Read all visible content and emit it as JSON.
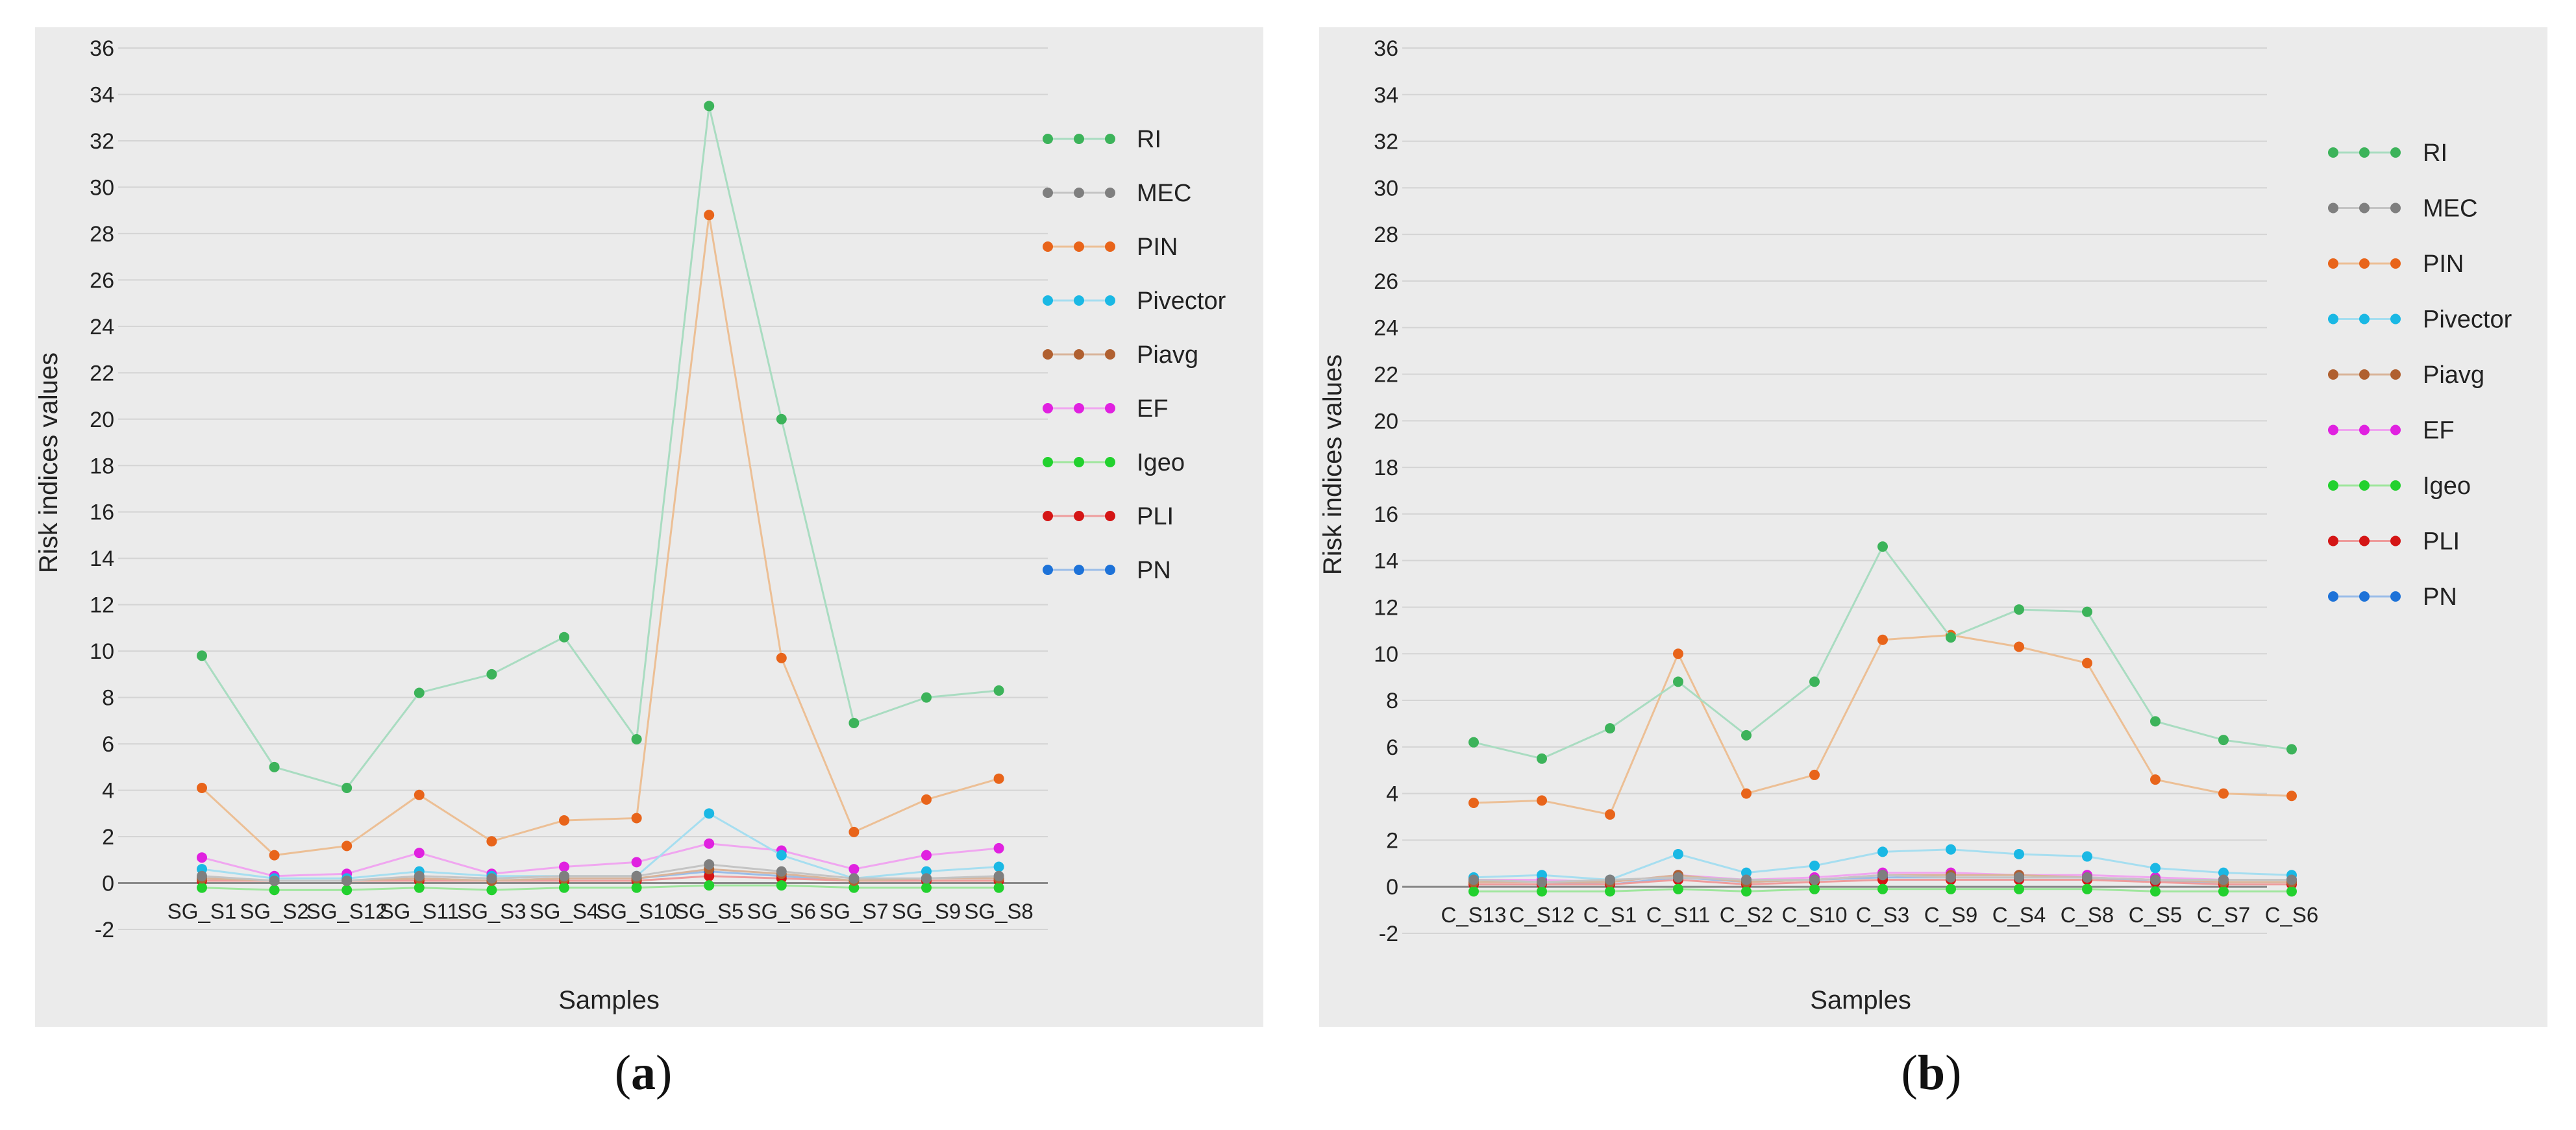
{
  "charts": [
    {
      "panel_label": "a",
      "chart_data": {
        "type": "line",
        "xlabel": "Samples",
        "ylabel": "Risk indices values",
        "ylim": [
          -2,
          36
        ],
        "yticks": [
          -2,
          0,
          2,
          4,
          6,
          8,
          10,
          12,
          14,
          16,
          18,
          20,
          22,
          24,
          26,
          28,
          30,
          32,
          34,
          36
        ],
        "grid": true,
        "legend_position": "right",
        "categories": [
          "SG_S1",
          "SG_S2",
          "SG_S12",
          "SG_S11",
          "SG_S3",
          "SG_S4",
          "SG_S10",
          "SG_S5",
          "SG_S6",
          "SG_S7",
          "SG_S9",
          "SG_S8"
        ],
        "series": [
          {
            "name": "RI",
            "color": "#3cb35a",
            "line_color": "#a9dcc1",
            "values": [
              9.8,
              5.0,
              4.1,
              8.2,
              9.0,
              10.6,
              6.2,
              33.5,
              20.0,
              6.9,
              8.0,
              8.3
            ]
          },
          {
            "name": "MEC",
            "color": "#7f7f7f",
            "line_color": "#c4c4c4",
            "values": [
              0.3,
              0.1,
              0.1,
              0.3,
              0.2,
              0.3,
              0.3,
              0.8,
              0.5,
              0.2,
              0.2,
              0.3
            ]
          },
          {
            "name": "PIN",
            "color": "#e8641a",
            "line_color": "#ecbf95",
            "values": [
              4.1,
              1.2,
              1.6,
              3.8,
              1.8,
              2.7,
              2.8,
              28.8,
              9.7,
              2.2,
              3.6,
              4.5
            ]
          },
          {
            "name": "Pivector",
            "color": "#1ab8e4",
            "line_color": "#a6def0",
            "values": [
              0.6,
              0.2,
              0.2,
              0.5,
              0.3,
              0.3,
              0.3,
              3.0,
              1.2,
              0.2,
              0.5,
              0.7
            ]
          },
          {
            "name": "Piavg",
            "color": "#b06030",
            "line_color": "#d9b49a",
            "values": [
              0.2,
              0.1,
              0.1,
              0.2,
              0.1,
              0.2,
              0.2,
              0.6,
              0.4,
              0.1,
              0.2,
              0.2
            ]
          },
          {
            "name": "EF",
            "color": "#e021e0",
            "line_color": "#f0a6f0",
            "values": [
              1.1,
              0.3,
              0.4,
              1.3,
              0.4,
              0.7,
              0.9,
              1.7,
              1.4,
              0.6,
              1.2,
              1.5
            ]
          },
          {
            "name": "Igeo",
            "color": "#22d12e",
            "line_color": "#9fe69d",
            "values": [
              -0.2,
              -0.3,
              -0.3,
              -0.2,
              -0.3,
              -0.2,
              -0.2,
              -0.1,
              -0.1,
              -0.2,
              -0.2,
              -0.2
            ]
          },
          {
            "name": "PLI",
            "color": "#d41515",
            "line_color": "#ee9c9c",
            "values": [
              0.1,
              0.1,
              0.1,
              0.1,
              0.1,
              0.1,
              0.1,
              0.3,
              0.2,
              0.1,
              0.1,
              0.1
            ]
          },
          {
            "name": "PN",
            "color": "#1d72d8",
            "line_color": "#9bbde8",
            "values": [
              0.2,
              0.1,
              0.1,
              0.2,
              0.1,
              0.2,
              0.2,
              0.5,
              0.3,
              0.1,
              0.2,
              0.2
            ]
          }
        ]
      }
    },
    {
      "panel_label": "b",
      "chart_data": {
        "type": "line",
        "xlabel": "Samples",
        "ylabel": "Risk indices values",
        "ylim": [
          -2,
          36
        ],
        "yticks": [
          -2,
          0,
          2,
          4,
          6,
          8,
          10,
          12,
          14,
          16,
          18,
          20,
          22,
          24,
          26,
          28,
          30,
          32,
          34,
          36
        ],
        "grid": true,
        "legend_position": "right",
        "categories": [
          "C_S13",
          "C_S12",
          "C_S1",
          "C_S11",
          "C_S2",
          "C_S10",
          "C_S3",
          "C_S9",
          "C_S4",
          "C_S8",
          "C_S5",
          "C_S7",
          "C_S6"
        ],
        "series": [
          {
            "name": "RI",
            "color": "#3cb35a",
            "line_color": "#a9dcc1",
            "values": [
              6.2,
              5.5,
              6.8,
              8.8,
              6.5,
              8.8,
              14.6,
              10.7,
              11.9,
              11.8,
              7.1,
              6.3,
              5.9
            ]
          },
          {
            "name": "MEC",
            "color": "#7f7f7f",
            "line_color": "#c4c4c4",
            "values": [
              0.3,
              0.2,
              0.3,
              0.4,
              0.3,
              0.3,
              0.5,
              0.4,
              0.4,
              0.4,
              0.3,
              0.3,
              0.3
            ]
          },
          {
            "name": "PIN",
            "color": "#e8641a",
            "line_color": "#ecbf95",
            "values": [
              3.6,
              3.7,
              3.1,
              10.0,
              4.0,
              4.8,
              10.6,
              10.8,
              10.3,
              9.6,
              4.6,
              4.0,
              3.9
            ]
          },
          {
            "name": "Pivector",
            "color": "#1ab8e4",
            "line_color": "#a6def0",
            "values": [
              0.4,
              0.5,
              0.3,
              1.4,
              0.6,
              0.9,
              1.5,
              1.6,
              1.4,
              1.3,
              0.8,
              0.6,
              0.5
            ]
          },
          {
            "name": "Piavg",
            "color": "#b06030",
            "line_color": "#d9b49a",
            "values": [
              0.2,
              0.2,
              0.2,
              0.5,
              0.2,
              0.3,
              0.5,
              0.5,
              0.5,
              0.4,
              0.3,
              0.2,
              0.2
            ]
          },
          {
            "name": "EF",
            "color": "#e021e0",
            "line_color": "#f0a6f0",
            "values": [
              0.3,
              0.3,
              0.2,
              0.5,
              0.3,
              0.4,
              0.6,
              0.6,
              0.5,
              0.5,
              0.4,
              0.3,
              0.3
            ]
          },
          {
            "name": "Igeo",
            "color": "#22d12e",
            "line_color": "#9fe69d",
            "values": [
              -0.2,
              -0.2,
              -0.2,
              -0.1,
              -0.2,
              -0.1,
              -0.1,
              -0.1,
              -0.1,
              -0.1,
              -0.2,
              -0.2,
              -0.2
            ]
          },
          {
            "name": "PLI",
            "color": "#d41515",
            "line_color": "#ee9c9c",
            "values": [
              0.1,
              0.1,
              0.1,
              0.3,
              0.1,
              0.2,
              0.3,
              0.3,
              0.3,
              0.3,
              0.2,
              0.1,
              0.1
            ]
          },
          {
            "name": "PN",
            "color": "#1d72d8",
            "line_color": "#9bbde8",
            "values": [
              0.2,
              0.2,
              0.1,
              0.4,
              0.2,
              0.3,
              0.4,
              0.4,
              0.4,
              0.4,
              0.2,
              0.2,
              0.2
            ]
          }
        ]
      }
    }
  ]
}
